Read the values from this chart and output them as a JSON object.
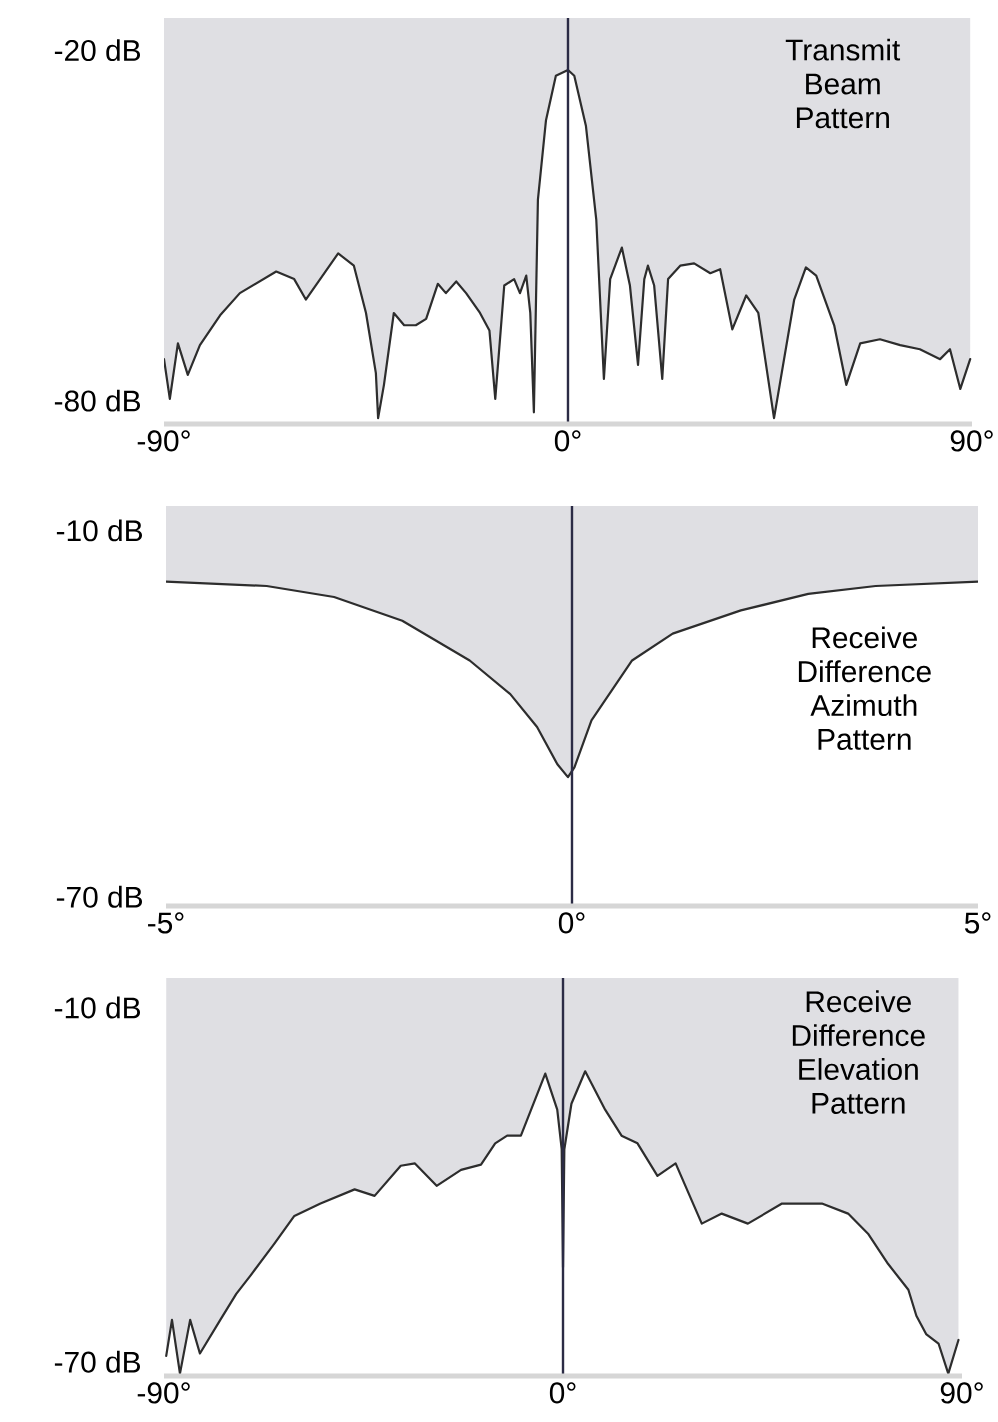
{
  "chart_data": [
    {
      "type": "area",
      "annotations": [
        "Transmit Beam Pattern"
      ],
      "x": [
        -90,
        -88.7,
        -86.9,
        -84.7,
        -82,
        -77.5,
        -73.1,
        -65,
        -61,
        -58.4,
        -51.2,
        -47.7,
        -45,
        -42.8,
        -42.3,
        -41,
        -38.8,
        -36.5,
        -33.9,
        -31.6,
        -29,
        -27.2,
        -24.9,
        -22.7,
        -19.6,
        -17.5,
        -16.2,
        -14.2,
        -12,
        -10.7,
        -9.3,
        -8.4,
        -7.6,
        -6.7,
        -4.9,
        -2.7,
        0,
        1.4,
        4,
        6.3,
        8,
        9.4,
        12,
        13.8,
        15.6,
        17,
        17.8,
        19.2,
        21,
        22.3,
        25,
        28.1,
        31.7,
        33.9,
        36.6,
        39.7,
        42.4,
        45.9,
        50.4,
        53,
        55.3,
        59.3,
        62,
        65.1,
        69.5,
        74,
        78.4,
        82.9,
        85.1,
        87.4,
        89.6
      ],
      "series": [
        {
          "color": "#dfdfe3",
          "values": [
            -72.9,
            -79.7,
            -70.2,
            -75.6,
            -70.5,
            -65.4,
            -61.6,
            -57.9,
            -59.2,
            -62.7,
            -54.8,
            -56.9,
            -65,
            -75.3,
            -83,
            -77.3,
            -65,
            -67.1,
            -67.1,
            -66,
            -60,
            -61.6,
            -59.6,
            -61.6,
            -65,
            -68,
            -79.7,
            -60.3,
            -59.2,
            -61.6,
            -58.6,
            -65,
            -82,
            -45.6,
            -32,
            -24.4,
            -23.4,
            -24.4,
            -33,
            -49,
            -76.3,
            -59.2,
            -53.8,
            -60.3,
            -73.9,
            -59.2,
            -56.9,
            -60.3,
            -76.3,
            -59.2,
            -56.9,
            -56.5,
            -58.2,
            -57.5,
            -67.8,
            -62,
            -65,
            -83,
            -62.7,
            -57.2,
            -58.6,
            -67.1,
            -77.3,
            -70.2,
            -69.5,
            -70.5,
            -71.2,
            -72.9,
            -71.2,
            -78,
            -72.9
          ]
        }
      ],
      "xlim": [
        -90,
        90
      ],
      "ylim": [
        -84,
        -14.5
      ],
      "xticks": [
        {
          "value": -90,
          "label": "-90°"
        },
        {
          "value": 0,
          "label": "0°"
        },
        {
          "value": 90,
          "label": "90°"
        }
      ],
      "yticks": [
        {
          "value": -20,
          "label": "-20 dB"
        },
        {
          "value": -80,
          "label": "-80 dB"
        }
      ],
      "ref_lines": [
        {
          "axis": "x",
          "value": 0,
          "color": "#2b2b45"
        }
      ]
    },
    {
      "type": "area",
      "annotations": [
        "Receive Difference Azimuth Pattern"
      ],
      "x": [
        -5,
        -3.76,
        -2.93,
        -2.09,
        -1.26,
        -0.76,
        -0.43,
        -0.18,
        -0.05,
        0.03,
        0.24,
        0.74,
        1.24,
        2.08,
        2.91,
        3.74,
        5
      ],
      "series": [
        {
          "color": "#dfdfe3",
          "values": [
            -18.4,
            -19.1,
            -20.9,
            -24.8,
            -31.3,
            -36.8,
            -42.2,
            -48.3,
            -50.4,
            -48.8,
            -41.1,
            -31.3,
            -26.9,
            -23.1,
            -20.4,
            -19.1,
            -18.4
          ]
        }
      ],
      "xlim": [
        -5,
        5
      ],
      "ylim": [
        -71.5,
        -6
      ],
      "xticks": [
        {
          "value": -5,
          "label": "-5°"
        },
        {
          "value": 0,
          "label": "0°"
        },
        {
          "value": 5,
          "label": "5°"
        }
      ],
      "yticks": [
        {
          "value": -10,
          "label": "-10 dB"
        },
        {
          "value": -70,
          "label": "-70 dB"
        }
      ],
      "ref_lines": [
        {
          "axis": "x",
          "value": 0,
          "color": "#2b2b45"
        }
      ]
    },
    {
      "type": "area",
      "annotations": [
        "Receive Difference Elevation Pattern"
      ],
      "x": [
        -89.5,
        -88.2,
        -86.4,
        -84.1,
        -81.9,
        -77.3,
        -73.7,
        -70.5,
        -65.1,
        -60.6,
        -54.7,
        -47,
        -42.5,
        -36.6,
        -33.4,
        -28.5,
        -23,
        -18.5,
        -15.3,
        -12.6,
        -9.5,
        -4,
        -1.3,
        -0.3,
        0,
        0.3,
        1.9,
        5,
        9.5,
        13.2,
        16.8,
        21.3,
        25.4,
        31.3,
        35.8,
        41.7,
        49.4,
        58.4,
        64.3,
        68.8,
        73.3,
        77.9,
        79.7,
        81.9,
        84.7,
        86.9,
        89.2
      ],
      "series": [
        {
          "color": "#dfdfe3",
          "values": [
            -69,
            -62.9,
            -72,
            -62.9,
            -68.6,
            -62.9,
            -58.5,
            -55.4,
            -50,
            -45.3,
            -43.2,
            -40.8,
            -41.9,
            -36.8,
            -36.4,
            -40.2,
            -37.5,
            -36.6,
            -33,
            -31.7,
            -31.7,
            -21.2,
            -27.3,
            -34,
            -54,
            -34,
            -26.3,
            -20.8,
            -27.3,
            -31.7,
            -33,
            -38.5,
            -36.4,
            -46.6,
            -44.9,
            -46.6,
            -43.2,
            -43.2,
            -44.9,
            -48.3,
            -53.4,
            -57.8,
            -62.2,
            -65.3,
            -66.9,
            -72,
            -66.3
          ]
        }
      ],
      "xlim": [
        -90,
        90
      ],
      "ylim": [
        -72.4,
        -5
      ],
      "xticks": [
        {
          "value": -90,
          "label": "-90°"
        },
        {
          "value": 0,
          "label": "0°"
        },
        {
          "value": 90,
          "label": "90°"
        }
      ],
      "yticks": [
        {
          "value": -10,
          "label": "-10 dB"
        },
        {
          "value": -70,
          "label": "-70 dB"
        }
      ],
      "ref_lines": [
        {
          "axis": "x",
          "value": 0,
          "color": "#2b2b45"
        }
      ]
    }
  ]
}
